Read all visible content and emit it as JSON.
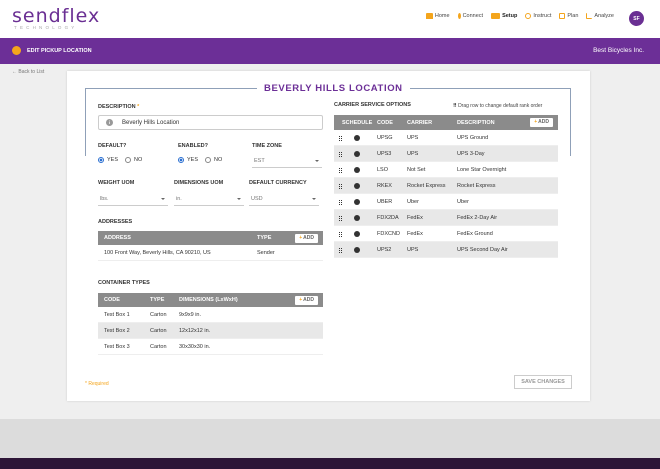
{
  "brand": {
    "logo": "sendflex",
    "tagline": "TECHNOLOGY",
    "logo_color": "#6a2f93"
  },
  "nav": {
    "items": [
      {
        "label": "Home",
        "icon": "home-icon",
        "color": "#f4a51c"
      },
      {
        "label": "Connect",
        "icon": "connect-icon",
        "color": "#f4a51c"
      },
      {
        "label": "Setup",
        "icon": "setup-icon",
        "color": "#f4a51c",
        "active": true
      },
      {
        "label": "Instruct",
        "icon": "instruct-icon",
        "color": "#f4a51c"
      },
      {
        "label": "Plan",
        "icon": "plan-icon",
        "color": "#f4a51c"
      },
      {
        "label": "Analyze",
        "icon": "analyze-icon",
        "color": "#f4a51c"
      }
    ],
    "avatar": "SF"
  },
  "header": {
    "title": "EDIT PICKUP LOCATION",
    "company": "Best Bicycles Inc.",
    "bar_color": "#6c2f97"
  },
  "back_link": "Back to List",
  "location": {
    "title": "BEVERLY HILLS LOCATION",
    "description_label": "DESCRIPTION",
    "description_required_mark": "*",
    "description_value": "Beverly Hills Location",
    "default_label": "DEFAULT?",
    "enabled_label": "ENABLED?",
    "yes": "YES",
    "no": "NO",
    "timezone_label": "TIME ZONE",
    "timezone_value": "EST",
    "weight_uom_label": "WEIGHT UOM",
    "weight_uom_value": "lbs.",
    "dims_uom_label": "DIMENSIONS UOM",
    "dims_uom_value": "in.",
    "currency_label": "DEFAULT CURRENCY",
    "currency_value": "USD"
  },
  "addresses": {
    "section_label": "ADDRESSES",
    "headers": [
      "ADDRESS",
      "TYPE"
    ],
    "add_label": "ADD",
    "rows": [
      {
        "address": "100 Front Way, Beverly Hills, CA 90210, US",
        "type": "Sender"
      }
    ]
  },
  "containers": {
    "section_label": "CONTAINER TYPES",
    "headers": [
      "CODE",
      "TYPE",
      "DIMENSIONS (LxWxH)"
    ],
    "add_label": "ADD",
    "rows": [
      {
        "code": "Test Box 1",
        "type": "Carton",
        "dims": "9x9x9 in."
      },
      {
        "code": "Test Box 2",
        "type": "Carton",
        "dims": "12x12x12 in."
      },
      {
        "code": "Test Box 3",
        "type": "Carton",
        "dims": "30x30x30 in."
      }
    ]
  },
  "carrier": {
    "section_label": "CARRIER SERVICE OPTIONS",
    "drag_note": "Drag row to change default rank order",
    "headers": [
      "SCHEDULE",
      "CODE",
      "CARRIER",
      "DESCRIPTION"
    ],
    "add_label": "ADD",
    "rows": [
      {
        "code": "UPSG",
        "carrier": "UPS",
        "desc": "UPS Ground"
      },
      {
        "code": "UPS3",
        "carrier": "UPS",
        "desc": "UPS 3-Day"
      },
      {
        "code": "LSO",
        "carrier": "Not Set",
        "desc": "Lone Star Overnight"
      },
      {
        "code": "RKEX",
        "carrier": "Rocket Express",
        "desc": "Rocket Express"
      },
      {
        "code": "UBER",
        "carrier": "Uber",
        "desc": "Uber"
      },
      {
        "code": "FDX2DA",
        "carrier": "FedEx",
        "desc": "FedEx 2-Day Air"
      },
      {
        "code": "FDXCND",
        "carrier": "FedEx",
        "desc": "FedEx Ground"
      },
      {
        "code": "UPS2",
        "carrier": "UPS",
        "desc": "UPS Second Day Air"
      }
    ]
  },
  "footer": {
    "required_note": "* Required",
    "save_label": "SAVE CHANGES"
  }
}
